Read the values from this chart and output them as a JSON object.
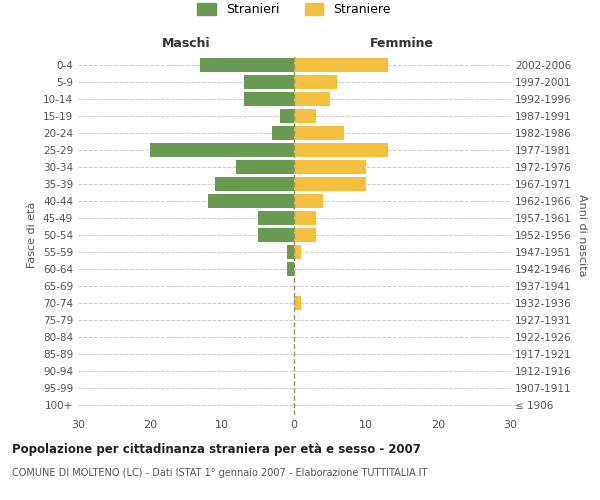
{
  "age_groups": [
    "100+",
    "95-99",
    "90-94",
    "85-89",
    "80-84",
    "75-79",
    "70-74",
    "65-69",
    "60-64",
    "55-59",
    "50-54",
    "45-49",
    "40-44",
    "35-39",
    "30-34",
    "25-29",
    "20-24",
    "15-19",
    "10-14",
    "5-9",
    "0-4"
  ],
  "birth_years": [
    "≤ 1906",
    "1907-1911",
    "1912-1916",
    "1917-1921",
    "1922-1926",
    "1927-1931",
    "1932-1936",
    "1937-1941",
    "1942-1946",
    "1947-1951",
    "1952-1956",
    "1957-1961",
    "1962-1966",
    "1967-1971",
    "1972-1976",
    "1977-1981",
    "1982-1986",
    "1987-1991",
    "1992-1996",
    "1997-2001",
    "2002-2006"
  ],
  "maschi": [
    0,
    0,
    0,
    0,
    0,
    0,
    0,
    0,
    1,
    1,
    5,
    5,
    12,
    11,
    8,
    20,
    3,
    2,
    7,
    7,
    13
  ],
  "femmine": [
    0,
    0,
    0,
    0,
    0,
    0,
    1,
    0,
    0,
    1,
    3,
    3,
    4,
    10,
    10,
    13,
    7,
    3,
    5,
    6,
    13
  ],
  "maschi_color": "#6a9a52",
  "femmine_color": "#f5c040",
  "title": "Popolazione per cittadinanza straniera per età e sesso - 2007",
  "subtitle": "COMUNE DI MOLTENO (LC) - Dati ISTAT 1° gennaio 2007 - Elaborazione TUTTITALIA.IT",
  "xlabel_left": "Maschi",
  "xlabel_right": "Femmine",
  "ylabel_left": "Fasce di età",
  "ylabel_right": "Anni di nascita",
  "xlim": 30,
  "legend_maschi": "Stranieri",
  "legend_femmine": "Straniere",
  "bg_color": "#ffffff",
  "grid_color": "#cccccc",
  "bar_height": 0.8
}
